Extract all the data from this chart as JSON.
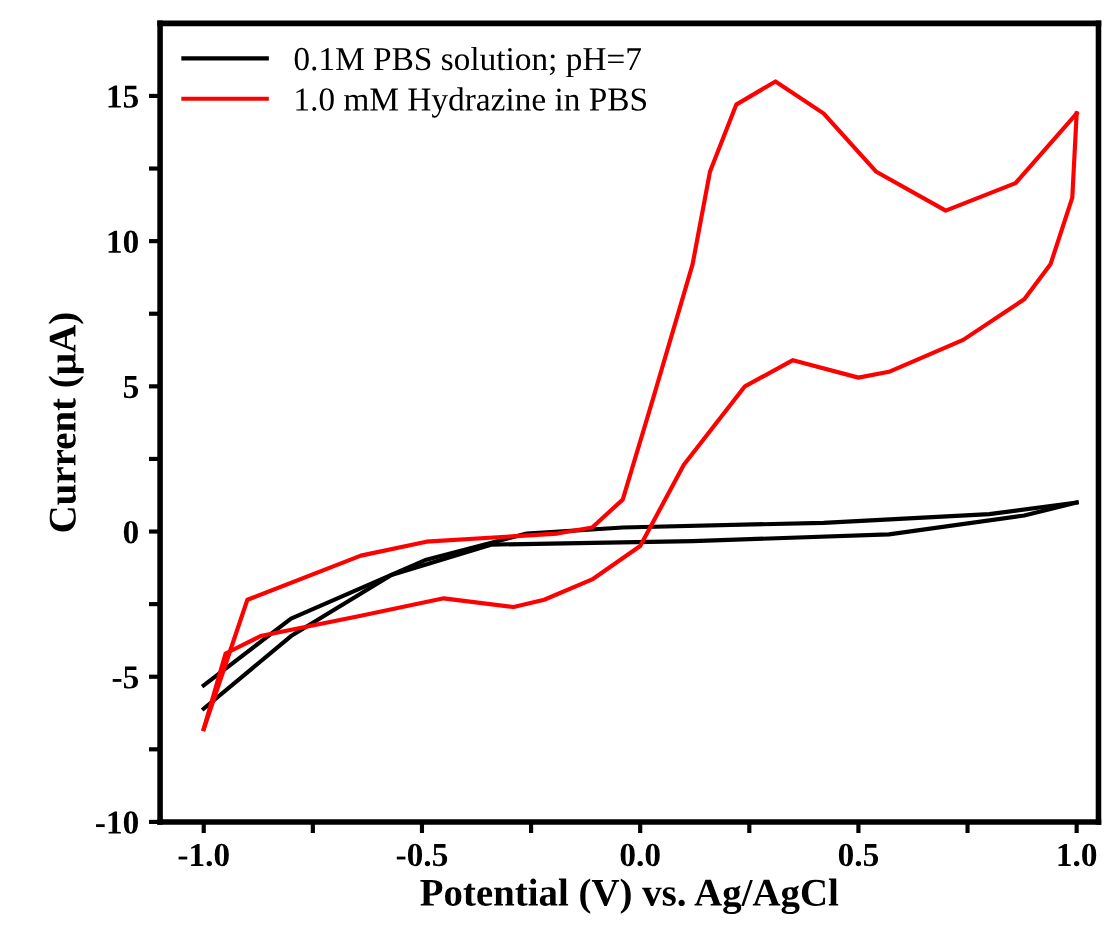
{
  "chart_data": {
    "type": "line",
    "xlabel": "Potential (V) vs. Ag/AgCl",
    "ylabel": "Current (µA)",
    "xlim": [
      -1.1,
      1.05
    ],
    "ylim": [
      -10,
      17.5
    ],
    "xticks": [
      {
        "value": -1.0,
        "label": "-1.0"
      },
      {
        "value": -0.75,
        "label": null
      },
      {
        "value": -0.5,
        "label": "-0.5"
      },
      {
        "value": -0.25,
        "label": null
      },
      {
        "value": 0.0,
        "label": "0.0"
      },
      {
        "value": 0.25,
        "label": null
      },
      {
        "value": 0.5,
        "label": "0.5"
      },
      {
        "value": 0.75,
        "label": null
      },
      {
        "value": 1.0,
        "label": "1.0"
      }
    ],
    "yticks": [
      {
        "value": -10,
        "label": "-10"
      },
      {
        "value": -7.5,
        "label": null
      },
      {
        "value": -5,
        "label": "-5"
      },
      {
        "value": -2.5,
        "label": null
      },
      0,
      {
        "value": 2.5,
        "label": null
      },
      5,
      {
        "value": 7.5,
        "label": null
      },
      10,
      {
        "value": 12.5,
        "label": null
      },
      15
    ],
    "grid": false,
    "legend": "top left",
    "line_style": "solid",
    "marker": "none",
    "series": [
      {
        "name": "0.1M PBS solution; pH=7",
        "color": "#000000",
        "x": [
          -1.0,
          -0.8,
          -0.49,
          -0.26,
          -0.04,
          0.42,
          0.8,
          1.0
        ],
        "values": [
          -5.3,
          -3.0,
          -0.97,
          -0.07,
          0.14,
          0.3,
          0.6,
          1.0
        ]
      },
      {
        "color": "#000000",
        "x": [
          1.0,
          0.88,
          0.57,
          0.12,
          -0.34,
          -0.57,
          -0.8,
          -1.0
        ],
        "values": [
          1.0,
          0.55,
          -0.1,
          -0.33,
          -0.45,
          -1.5,
          -3.6,
          -6.1
        ]
      },
      {
        "name": "1.0 mM Hydrazine in PBS",
        "color": "#ff0000",
        "x": [
          -1.0,
          -0.9,
          -0.64,
          -0.49,
          -0.19,
          -0.11,
          -0.04,
          0.03,
          0.12,
          0.16,
          0.22,
          0.31,
          0.42,
          0.54,
          0.7,
          0.86,
          1.0
        ],
        "values": [
          -6.8,
          -2.35,
          -0.83,
          -0.35,
          -0.07,
          0.14,
          1.1,
          4.6,
          9.2,
          12.4,
          14.7,
          15.5,
          14.4,
          12.4,
          11.05,
          12.0,
          14.4
        ]
      },
      {
        "color": "#ff0000",
        "x": [
          1.0,
          0.99,
          0.94,
          0.88,
          0.74,
          0.57,
          0.5,
          0.35,
          0.24,
          0.1,
          0.0,
          -0.11,
          -0.22,
          -0.29,
          -0.45,
          -0.64,
          -0.87,
          -0.95,
          -1.0
        ],
        "values": [
          14.4,
          11.5,
          9.2,
          8.0,
          6.6,
          5.5,
          5.3,
          5.9,
          5.0,
          2.3,
          -0.5,
          -1.65,
          -2.35,
          -2.6,
          -2.3,
          -2.9,
          -3.6,
          -4.2,
          -6.8
        ]
      }
    ]
  }
}
